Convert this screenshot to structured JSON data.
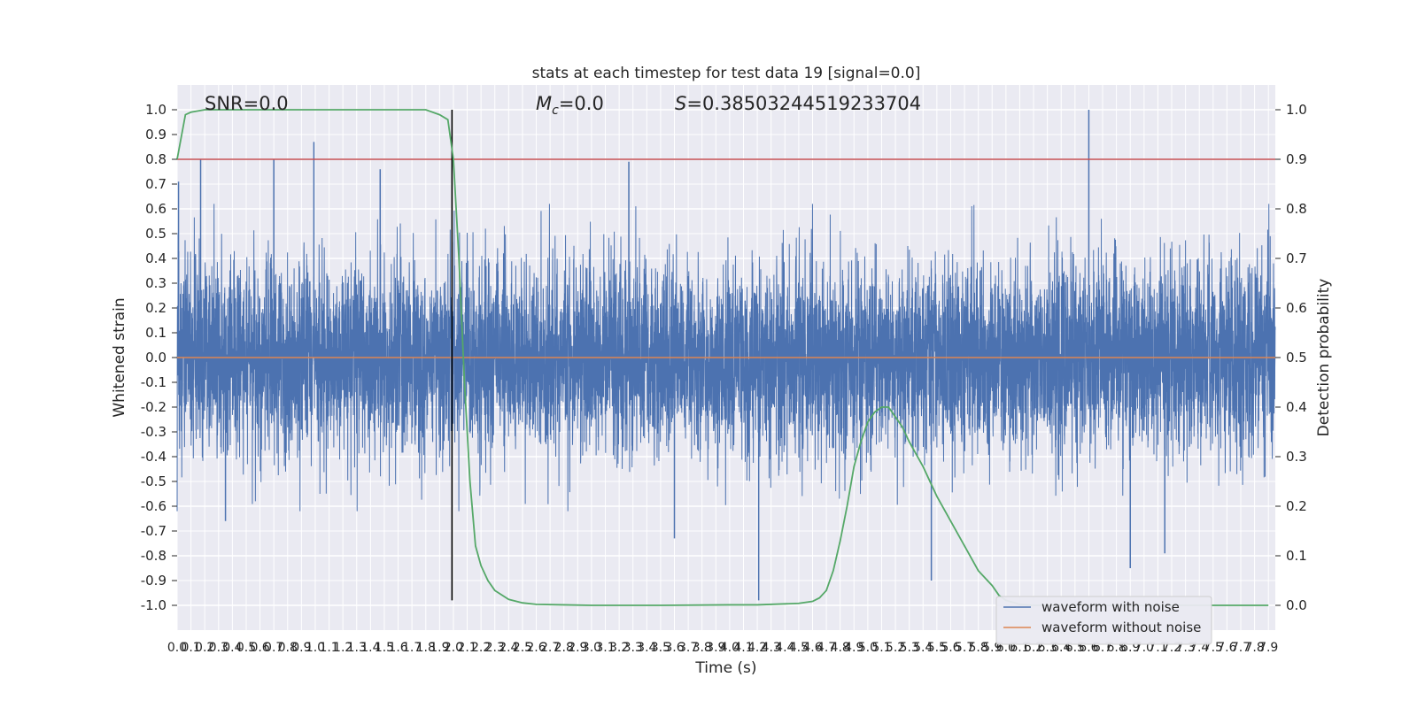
{
  "chart_data": {
    "type": "line",
    "title": "stats at each timestep for test data 19 [signal=0.0]",
    "xlabel": "Time (s)",
    "ylabel": "Whitened strain",
    "y2label": "Detection probability",
    "xlim": [
      0.0,
      7.95
    ],
    "ylim": [
      -1.1,
      1.1
    ],
    "y2lim": [
      -0.05,
      1.05
    ],
    "xticks": [
      "0.0",
      "0.1",
      "0.2",
      "0.3",
      "0.4",
      "0.5",
      "0.6",
      "0.7",
      "0.8",
      "0.9",
      "1.0",
      "1.1",
      "1.2",
      "1.3",
      "1.4",
      "1.5",
      "1.6",
      "1.7",
      "1.8",
      "1.9",
      "2.0",
      "2.1",
      "2.2",
      "2.3",
      "2.4",
      "2.5",
      "2.6",
      "2.7",
      "2.8",
      "2.9",
      "3.0",
      "3.1",
      "3.2",
      "3.3",
      "3.4",
      "3.5",
      "3.6",
      "3.7",
      "3.8",
      "3.9",
      "4.0",
      "4.1",
      "4.2",
      "4.3",
      "4.4",
      "4.5",
      "4.6",
      "4.7",
      "4.8",
      "4.9",
      "5.0",
      "5.1",
      "5.2",
      "5.3",
      "5.4",
      "5.5",
      "5.6",
      "5.7",
      "5.8",
      "5.9",
      "6.0",
      "6.1",
      "6.2",
      "6.3",
      "6.4",
      "6.5",
      "6.6",
      "6.7",
      "6.8",
      "6.9",
      "7.0",
      "7.1",
      "7.2",
      "7.3",
      "7.4",
      "7.5",
      "7.6",
      "7.7",
      "7.8",
      "7.9"
    ],
    "yticks": [
      "1.0",
      "0.9",
      "0.8",
      "0.7",
      "0.6",
      "0.5",
      "0.4",
      "0.3",
      "0.2",
      "0.1",
      "0.0",
      "-0.1",
      "-0.2",
      "-0.3",
      "-0.4",
      "-0.5",
      "-0.6",
      "-0.7",
      "-0.8",
      "-0.9",
      "-1.0"
    ],
    "y2ticks": [
      "1.0",
      "0.9",
      "0.8",
      "0.7",
      "0.6",
      "0.5",
      "0.4",
      "0.3",
      "0.2",
      "0.1",
      "0.0"
    ],
    "annotations": {
      "snr": "SNR=0.0",
      "mc_symbol": "M",
      "mc_sub": "c",
      "mc_value": "=0.0",
      "s_symbol": "S",
      "s_value": "=0.38503244519233704"
    },
    "threshold": {
      "value": 0.9,
      "axis": "y2",
      "color": "#c44e52"
    },
    "vline": {
      "x": 1.99,
      "ymin": -0.98,
      "ymax": 1.0,
      "color": "#000000"
    },
    "legend": {
      "position": "lower-right",
      "entries": [
        {
          "label": "waveform with noise",
          "color": "#4c72b0"
        },
        {
          "label": "waveform without noise",
          "color": "#dd8452"
        }
      ]
    },
    "series": [
      {
        "name": "waveform with noise",
        "axis": "y",
        "color": "#4c72b0",
        "kind": "dense noise, amplitude mostly within ±0.4, peaks to about 1.0 at t≈6.6 and -0.98 at t≈4.2",
        "peaks": [
          [
            0.01,
            0.71
          ],
          [
            0.17,
            0.8
          ],
          [
            0.7,
            0.8
          ],
          [
            0.99,
            0.87
          ],
          [
            1.47,
            0.76
          ],
          [
            3.27,
            0.79
          ],
          [
            6.6,
            1.0
          ],
          [
            0.35,
            -0.66
          ],
          [
            3.6,
            -0.73
          ],
          [
            4.21,
            -0.98
          ],
          [
            5.46,
            -0.9
          ],
          [
            6.9,
            -0.85
          ],
          [
            7.15,
            -0.79
          ]
        ]
      },
      {
        "name": "waveform without noise",
        "axis": "y",
        "color": "#dd8452",
        "values_description": "flat at 0.0",
        "x": [
          0.0,
          7.95
        ],
        "y": [
          0.0,
          0.0
        ]
      },
      {
        "name": "detection probability",
        "axis": "y2",
        "color": "#55a868",
        "x": [
          0.0,
          0.06,
          0.1,
          0.2,
          0.5,
          1.0,
          1.5,
          1.8,
          1.9,
          1.96,
          2.0,
          2.04,
          2.08,
          2.12,
          2.16,
          2.2,
          2.25,
          2.3,
          2.4,
          2.5,
          2.6,
          2.8,
          3.0,
          3.5,
          4.0,
          4.2,
          4.5,
          4.6,
          4.65,
          4.7,
          4.75,
          4.8,
          4.85,
          4.9,
          4.95,
          5.0,
          5.05,
          5.1,
          5.15,
          5.2,
          5.25,
          5.3,
          5.4,
          5.5,
          5.6,
          5.7,
          5.8,
          5.9,
          5.95,
          6.0,
          6.1,
          6.2,
          6.5,
          7.0,
          7.5,
          7.9
        ],
        "y": [
          0.9,
          0.99,
          0.995,
          1.0,
          1.0,
          1.0,
          1.0,
          1.0,
          0.99,
          0.98,
          0.9,
          0.7,
          0.45,
          0.25,
          0.12,
          0.08,
          0.05,
          0.03,
          0.012,
          0.005,
          0.002,
          0.001,
          0.0,
          0.0,
          0.001,
          0.001,
          0.004,
          0.008,
          0.015,
          0.03,
          0.07,
          0.13,
          0.2,
          0.28,
          0.33,
          0.37,
          0.39,
          0.4,
          0.4,
          0.38,
          0.36,
          0.33,
          0.28,
          0.22,
          0.17,
          0.12,
          0.07,
          0.04,
          0.02,
          0.01,
          0.002,
          0.0,
          0.0,
          0.0,
          0.0,
          0.0
        ]
      }
    ]
  }
}
